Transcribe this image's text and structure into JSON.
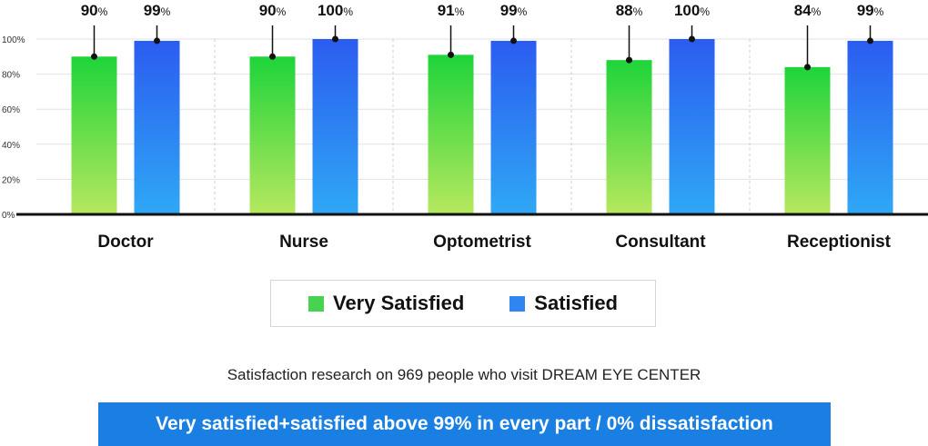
{
  "chart_data": {
    "type": "bar",
    "categories": [
      "Doctor",
      "Nurse",
      "Optometrist",
      "Consultant",
      "Receptionist"
    ],
    "series": [
      {
        "name": "Very Satisfied",
        "values": [
          90,
          90,
          91,
          88,
          84
        ],
        "labels": [
          "90",
          "90",
          "91",
          "88",
          "84"
        ],
        "color_top": "#1ed43a",
        "color_bottom": "#b7e85e"
      },
      {
        "name": "Satisfied",
        "values": [
          99,
          100,
          99,
          100,
          99
        ],
        "labels": [
          "99",
          "100",
          "99",
          "100",
          "99"
        ],
        "color_top": "#2b5cf0",
        "color_bottom": "#2fa8f5"
      }
    ],
    "value_suffix": "%",
    "yticks": [
      "0%",
      "20%",
      "40%",
      "60%",
      "80%",
      "100%"
    ],
    "ylim": [
      0,
      100
    ],
    "grid": true,
    "xlabel": "",
    "ylabel": "",
    "legend_position": "bottom"
  },
  "legend": {
    "very_satisfied_label": "Very Satisfied",
    "very_satisfied_color": "#47d34f",
    "satisfied_label": "Satisfied",
    "satisfied_color": "#2f86f0"
  },
  "caption": "Satisfaction research on 969 people who visit DREAM EYE CENTER",
  "banner": {
    "text": "Very satisfied+satisfied above 99% in every part / 0% dissatisfaction",
    "color": "#1a7fe3"
  }
}
